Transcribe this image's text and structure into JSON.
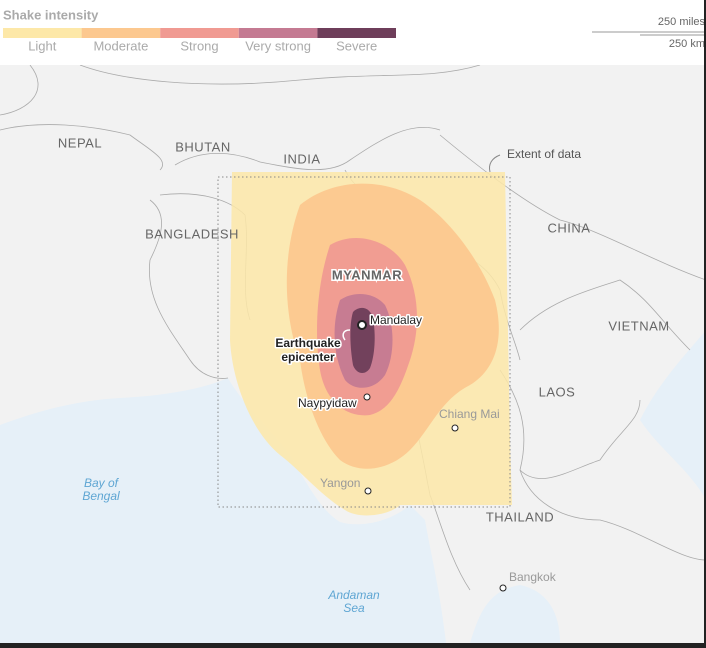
{
  "legend": {
    "title": "Shake intensity",
    "items": [
      {
        "label": "Light",
        "color": "#fde8a8"
      },
      {
        "label": "Moderate",
        "color": "#fcc88f"
      },
      {
        "label": "Strong",
        "color": "#f09a92"
      },
      {
        "label": "Very strong",
        "color": "#c47a92"
      },
      {
        "label": "Severe",
        "color": "#6e3e5a"
      }
    ]
  },
  "scale": {
    "miles": "250 miles",
    "km": "250 km"
  },
  "countries": [
    "NEPAL",
    "BHUTAN",
    "INDIA",
    "BANGLADESH",
    "CHINA",
    "MYANMAR",
    "VIETNAM",
    "LAOS",
    "THAILAND"
  ],
  "cities": [
    "Mandalay",
    "Naypyidaw",
    "Chiang Mai",
    "Yangon",
    "Bangkok"
  ],
  "seas": [
    [
      "Bay of",
      "Bengal"
    ],
    [
      "Andaman",
      "Sea"
    ]
  ],
  "annotations": {
    "extent": "Extent of data",
    "epicenter": [
      "Earthquake",
      "epicenter"
    ]
  }
}
